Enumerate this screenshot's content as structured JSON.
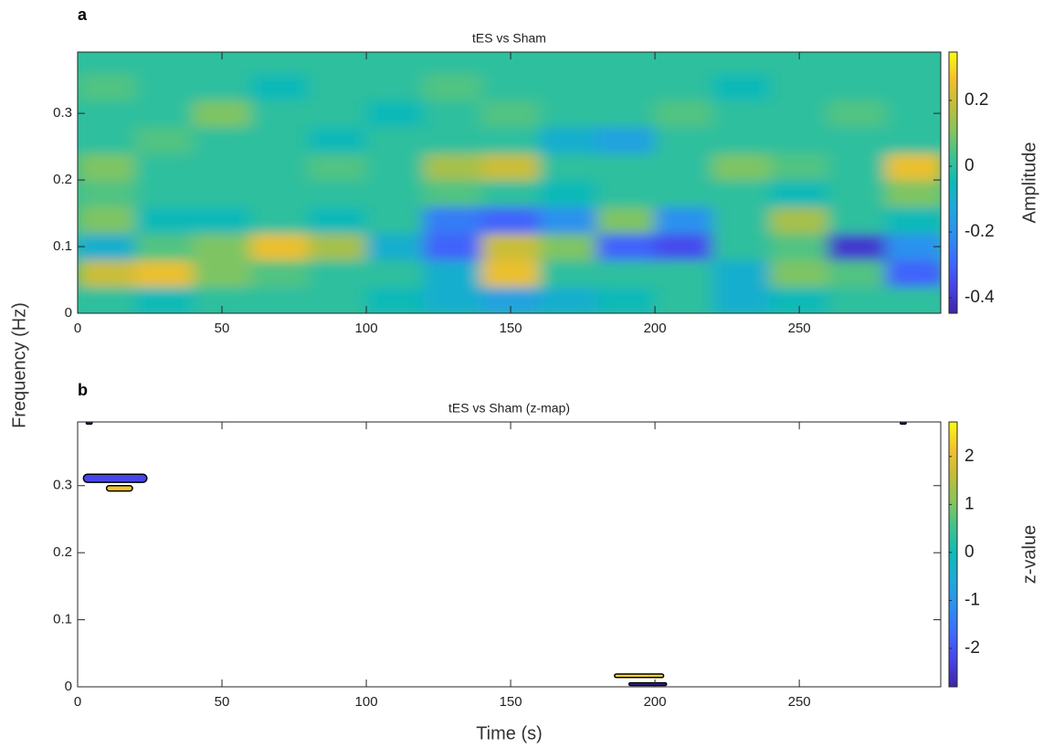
{
  "chart_data": [
    {
      "type": "heatmap",
      "panel_label": "a",
      "title": "tES vs Sham",
      "ylabel": "Frequency (Hz)",
      "x": [
        10,
        30,
        50,
        70,
        90,
        110,
        130,
        150,
        170,
        190,
        210,
        230,
        250,
        270,
        290
      ],
      "y": [
        0.02,
        0.06,
        0.1,
        0.14,
        0.18,
        0.22,
        0.26,
        0.3,
        0.34,
        0.38
      ],
      "z": [
        [
          0,
          -0.05,
          0,
          0,
          0,
          -0.05,
          -0.1,
          -0.15,
          -0.1,
          -0.05,
          0,
          -0.1,
          -0.05,
          0,
          0
        ],
        [
          0.2,
          0.25,
          0.1,
          0.05,
          0,
          0,
          -0.1,
          0.25,
          0,
          0,
          0,
          -0.1,
          0.1,
          0.05,
          -0.3
        ],
        [
          -0.1,
          0.05,
          0.1,
          0.25,
          0.15,
          -0.1,
          -0.3,
          0.2,
          0.1,
          -0.3,
          -0.35,
          0,
          0.05,
          -0.4,
          -0.2
        ],
        [
          0.1,
          -0.05,
          -0.05,
          0,
          -0.05,
          0,
          -0.25,
          -0.3,
          -0.2,
          0.1,
          -0.2,
          0,
          0.15,
          0,
          -0.05
        ],
        [
          0.05,
          0,
          0,
          0,
          0,
          0,
          0.05,
          0,
          -0.05,
          0,
          0,
          0,
          -0.05,
          0,
          0.1
        ],
        [
          0.1,
          0,
          0,
          0,
          0.05,
          0,
          0.15,
          0.2,
          0,
          0,
          0,
          0.1,
          0.05,
          0,
          0.25
        ],
        [
          0,
          0.05,
          0,
          0,
          -0.05,
          0,
          0,
          0,
          -0.1,
          -0.15,
          0,
          0,
          0,
          0,
          0
        ],
        [
          0,
          0,
          0.1,
          0,
          0,
          -0.05,
          0,
          0.05,
          0,
          0,
          0.05,
          0,
          0,
          0.05,
          0
        ],
        [
          0.05,
          0,
          0,
          -0.05,
          0,
          0,
          0.05,
          0,
          0,
          0,
          0,
          -0.05,
          0,
          0,
          0
        ],
        [
          0,
          0,
          0,
          0,
          0,
          0,
          0,
          0,
          0,
          0,
          0,
          0,
          0,
          0,
          0
        ]
      ],
      "xlim": [
        0,
        299
      ],
      "ylim": [
        0,
        0.392
      ],
      "xticks": [
        0,
        50,
        100,
        150,
        200,
        250
      ],
      "yticks": [
        0,
        0.1,
        0.2,
        0.3
      ],
      "colorbar": {
        "label": "Amplitude",
        "clim": [
          -0.447,
          0.347
        ],
        "ticks": [
          -0.4,
          -0.2,
          0,
          0.2
        ]
      }
    },
    {
      "type": "region-map",
      "panel_label": "b",
      "title": "tES vs Sham (z-map)",
      "xlabel": "Time (s)",
      "regions": [
        {
          "x": [
            2,
            24
          ],
          "y": [
            0.305,
            0.317
          ],
          "z": -2.2
        },
        {
          "x": [
            10,
            19
          ],
          "y": [
            0.292,
            0.3
          ],
          "z": 2.2
        },
        {
          "x": [
            186,
            203
          ],
          "y": [
            0.014,
            0.019
          ],
          "z": 2.4
        },
        {
          "x": [
            191,
            204
          ],
          "y": [
            0.002,
            0.006
          ],
          "z": -2.7
        },
        {
          "x": [
            3,
            5
          ],
          "y": [
            0.392,
            0.395
          ],
          "z": -2.5
        },
        {
          "x": [
            285,
            287
          ],
          "y": [
            0.392,
            0.395
          ],
          "z": -2.5
        }
      ],
      "xlim": [
        0,
        299
      ],
      "ylim": [
        0,
        0.395
      ],
      "xticks": [
        0,
        50,
        100,
        150,
        200,
        250
      ],
      "yticks": [
        0,
        0.1,
        0.2,
        0.3
      ],
      "colorbar": {
        "label": "z-value",
        "clim": [
          -2.8,
          2.72
        ],
        "ticks": [
          -2,
          -1,
          0,
          1,
          2
        ]
      }
    }
  ]
}
